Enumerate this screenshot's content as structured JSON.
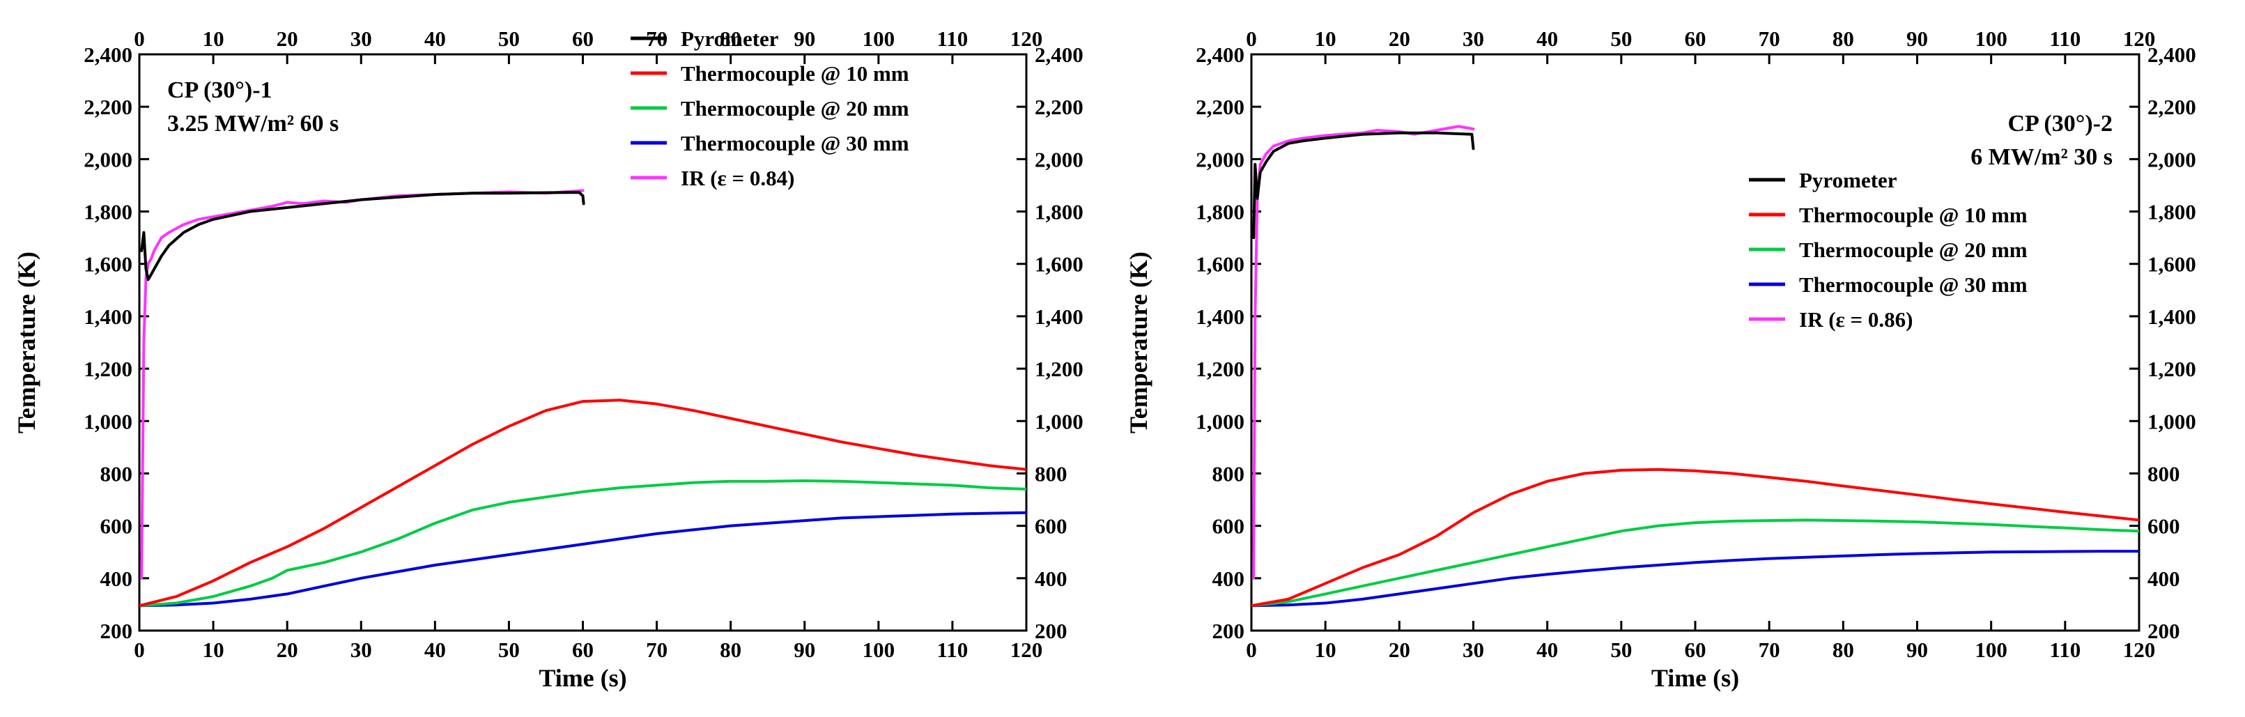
{
  "chart_data": [
    {
      "type": "line",
      "xlabel": "Time (s)",
      "ylabel": "Temperature (K)",
      "xlim": [
        0,
        120
      ],
      "ylim": [
        200,
        2400
      ],
      "x_ticks": [
        0,
        10,
        20,
        30,
        40,
        50,
        60,
        70,
        80,
        90,
        100,
        110,
        120
      ],
      "y_ticks": [
        200,
        400,
        600,
        800,
        1000,
        1200,
        1400,
        1600,
        1800,
        2000,
        2200,
        2400
      ],
      "y_tick_labels": [
        "200",
        "400",
        "600",
        "800",
        "1,000",
        "1,200",
        "1,400",
        "1,600",
        "1,800",
        "2,000",
        "2,200",
        "2,400"
      ],
      "annotation": [
        "CP (30°)-1",
        "3.25 MW/m² 60 s"
      ],
      "annotation_position": "top-left",
      "legend_position": "top-right",
      "grid": false,
      "series": [
        {
          "name": "Pyrometer",
          "color": "#000000",
          "x": [
            0.3,
            0.6,
            0.9,
            1.2,
            1.6,
            2,
            3,
            4,
            6,
            8,
            10,
            15,
            20,
            25,
            30,
            35,
            40,
            45,
            50,
            55,
            59.5,
            60,
            60.1
          ],
          "y": [
            1650,
            1720,
            1580,
            1540,
            1560,
            1580,
            1630,
            1670,
            1720,
            1750,
            1770,
            1800,
            1815,
            1830,
            1845,
            1855,
            1865,
            1870,
            1870,
            1872,
            1873,
            1860,
            1830
          ]
        },
        {
          "name": "Thermocouple @ 10 mm",
          "color": "#ff0000",
          "x": [
            0,
            5,
            10,
            15,
            20,
            25,
            30,
            35,
            40,
            45,
            50,
            55,
            60,
            65,
            70,
            75,
            80,
            85,
            90,
            95,
            100,
            105,
            110,
            115,
            120
          ],
          "y": [
            295,
            330,
            390,
            460,
            520,
            590,
            670,
            750,
            830,
            910,
            980,
            1040,
            1075,
            1080,
            1065,
            1040,
            1010,
            980,
            950,
            920,
            895,
            870,
            850,
            830,
            815
          ]
        },
        {
          "name": "Thermocouple @ 20 mm",
          "color": "#00cc44",
          "x": [
            0,
            5,
            10,
            15,
            18,
            20,
            25,
            30,
            35,
            40,
            45,
            50,
            55,
            60,
            65,
            70,
            75,
            80,
            85,
            90,
            95,
            100,
            105,
            110,
            115,
            120
          ],
          "y": [
            295,
            305,
            330,
            370,
            400,
            430,
            460,
            500,
            550,
            610,
            660,
            690,
            710,
            730,
            745,
            755,
            765,
            770,
            770,
            772,
            770,
            765,
            760,
            755,
            745,
            740
          ]
        },
        {
          "name": "Thermocouple @ 30 mm",
          "color": "#0000dd",
          "x": [
            0,
            5,
            10,
            15,
            20,
            25,
            30,
            35,
            40,
            45,
            50,
            55,
            60,
            65,
            70,
            75,
            80,
            85,
            90,
            95,
            100,
            105,
            110,
            115,
            120
          ],
          "y": [
            295,
            298,
            305,
            320,
            340,
            370,
            400,
            425,
            450,
            470,
            490,
            510,
            530,
            550,
            570,
            585,
            600,
            610,
            620,
            630,
            635,
            640,
            645,
            648,
            650
          ]
        },
        {
          "name": "IR (ε = 0.84)",
          "color": "#ff33ff",
          "x": [
            0.3,
            0.6,
            0.9,
            1.2,
            1.6,
            2,
            3,
            4,
            6,
            8,
            10,
            12,
            15,
            18,
            20,
            22,
            25,
            28,
            30,
            35,
            40,
            45,
            50,
            55,
            60
          ],
          "y": [
            400,
            1300,
            1550,
            1600,
            1620,
            1650,
            1700,
            1720,
            1750,
            1770,
            1780,
            1790,
            1805,
            1820,
            1835,
            1830,
            1840,
            1835,
            1845,
            1860,
            1865,
            1870,
            1875,
            1870,
            1880
          ]
        }
      ]
    },
    {
      "type": "line",
      "xlabel": "Time (s)",
      "ylabel": "Temperature (K)",
      "xlim": [
        0,
        120
      ],
      "ylim": [
        200,
        2400
      ],
      "x_ticks": [
        0,
        10,
        20,
        30,
        40,
        50,
        60,
        70,
        80,
        90,
        100,
        110,
        120
      ],
      "y_ticks": [
        200,
        400,
        600,
        800,
        1000,
        1200,
        1400,
        1600,
        1800,
        2000,
        2200,
        2400
      ],
      "y_tick_labels": [
        "200",
        "400",
        "600",
        "800",
        "1,000",
        "1,200",
        "1,400",
        "1,600",
        "1,800",
        "2,000",
        "2,200",
        "2,400"
      ],
      "annotation": [
        "CP (30°)-2",
        "6 MW/m² 30 s"
      ],
      "annotation_position": "top-right",
      "legend_position": "center-right",
      "grid": false,
      "series": [
        {
          "name": "Pyrometer",
          "color": "#000000",
          "x": [
            0.3,
            0.5,
            0.8,
            1.2,
            2,
            3,
            5,
            7,
            10,
            15,
            20,
            25,
            29.8,
            30
          ],
          "y": [
            1700,
            1980,
            1850,
            1950,
            1990,
            2030,
            2060,
            2070,
            2080,
            2095,
            2100,
            2100,
            2095,
            2040
          ]
        },
        {
          "name": "Thermocouple @ 10 mm",
          "color": "#ff0000",
          "x": [
            0,
            5,
            10,
            15,
            20,
            25,
            30,
            35,
            40,
            45,
            50,
            55,
            60,
            65,
            70,
            75,
            80,
            85,
            90,
            95,
            100,
            105,
            110,
            115,
            120
          ],
          "y": [
            295,
            320,
            380,
            440,
            490,
            560,
            650,
            720,
            770,
            800,
            812,
            815,
            810,
            800,
            785,
            770,
            752,
            735,
            718,
            700,
            684,
            668,
            652,
            637,
            622
          ]
        },
        {
          "name": "Thermocouple @ 20 mm",
          "color": "#00cc44",
          "x": [
            0,
            5,
            10,
            15,
            20,
            25,
            30,
            35,
            40,
            45,
            50,
            55,
            60,
            65,
            70,
            75,
            80,
            85,
            90,
            95,
            100,
            105,
            110,
            115,
            120
          ],
          "y": [
            295,
            310,
            340,
            370,
            400,
            430,
            460,
            490,
            520,
            550,
            580,
            600,
            612,
            618,
            620,
            622,
            620,
            618,
            615,
            610,
            605,
            598,
            592,
            585,
            580
          ]
        },
        {
          "name": "Thermocouple @ 30 mm",
          "color": "#0000dd",
          "x": [
            0,
            5,
            10,
            15,
            20,
            25,
            30,
            35,
            40,
            45,
            50,
            55,
            60,
            65,
            70,
            75,
            80,
            85,
            90,
            95,
            100,
            105,
            110,
            115,
            120
          ],
          "y": [
            295,
            298,
            305,
            320,
            340,
            360,
            380,
            400,
            415,
            428,
            440,
            450,
            460,
            468,
            475,
            480,
            485,
            490,
            494,
            497,
            500,
            501,
            502,
            503,
            503
          ]
        },
        {
          "name": "IR (ε = 0.86)",
          "color": "#ff33ff",
          "x": [
            0.3,
            0.5,
            0.8,
            1.2,
            2,
            3,
            5,
            7,
            10,
            12,
            15,
            17,
            20,
            22,
            25,
            28,
            30
          ],
          "y": [
            400,
            1400,
            1850,
            1980,
            2020,
            2050,
            2070,
            2080,
            2090,
            2095,
            2100,
            2110,
            2105,
            2095,
            2110,
            2125,
            2115
          ]
        }
      ]
    }
  ]
}
